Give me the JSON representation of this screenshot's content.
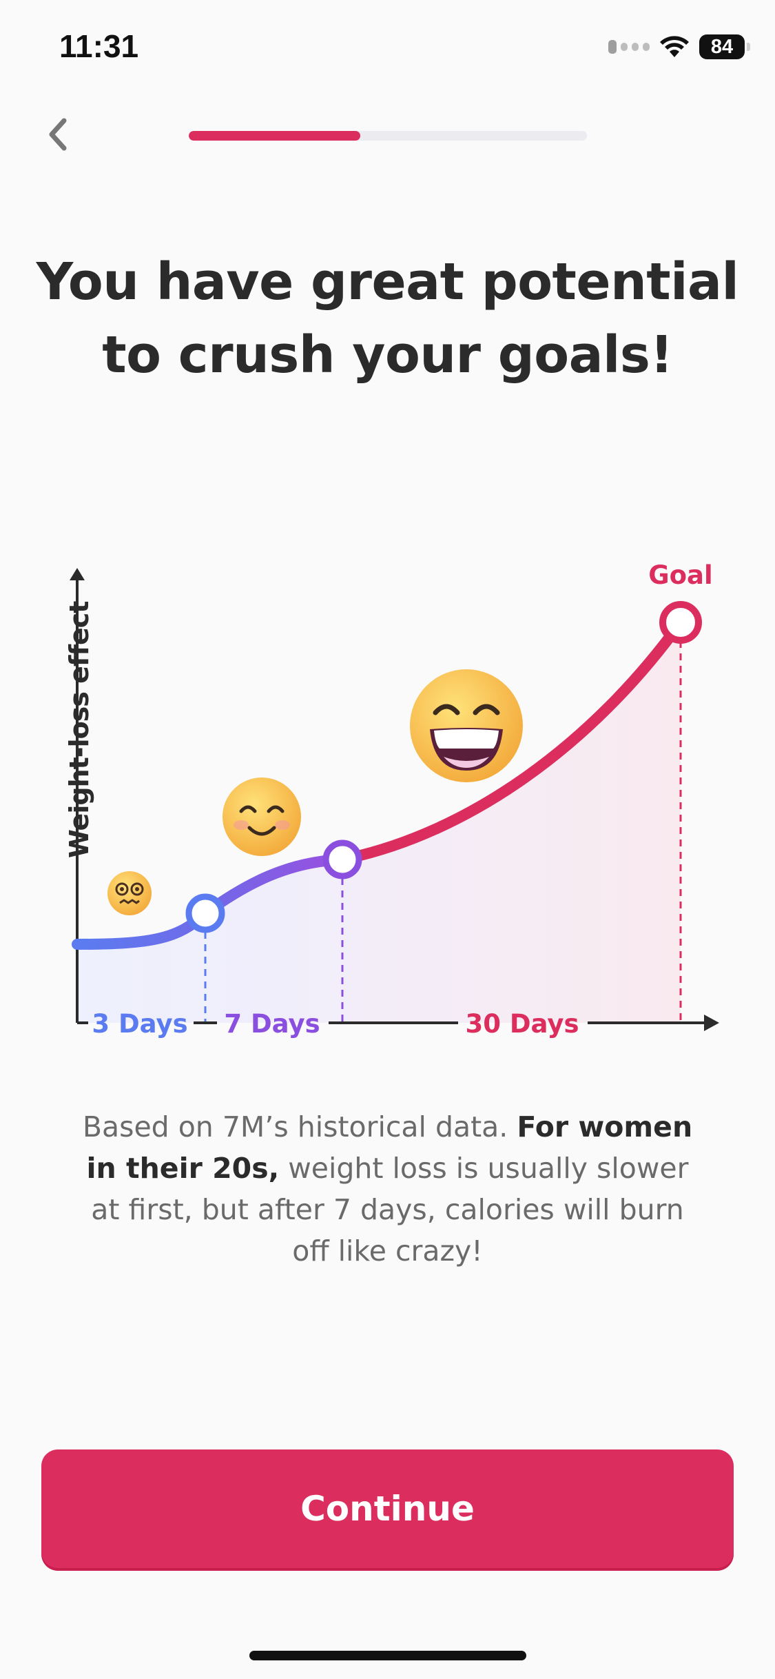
{
  "status_bar": {
    "time": "11:31",
    "battery": "84"
  },
  "nav": {
    "back_icon": "chevron-left-icon",
    "progress": 0.43
  },
  "headline": "You have great potential to crush your goals!",
  "chart_data": {
    "type": "line",
    "title": "",
    "ylabel": "Weight-loss effect",
    "xlabel": "",
    "segments": [
      "3 Days",
      "7 Days",
      "30 Days"
    ],
    "goal_label": "Goal",
    "milestones": [
      {
        "label": "3 Days",
        "color": "#5b7cf0",
        "emoji": "dizzy-face-icon"
      },
      {
        "label": "7 Days",
        "color": "#8b4fe0",
        "emoji": "smiling-face-icon"
      },
      {
        "label": "30 Days",
        "color": "#dc2e5e",
        "emoji": "grinning-face-icon"
      }
    ],
    "colors": {
      "start": "#5b7cf0",
      "mid": "#8b4fe0",
      "end": "#dc2e5e"
    }
  },
  "description": {
    "part1": "Based on 7M’s historical data. ",
    "bold": "For women in their 20s,",
    "part2": " weight loss is usually slower at first, but after 7 days, calories will burn off like crazy!"
  },
  "continue_label": "Continue",
  "colors": {
    "accent": "#dc2e5e"
  }
}
